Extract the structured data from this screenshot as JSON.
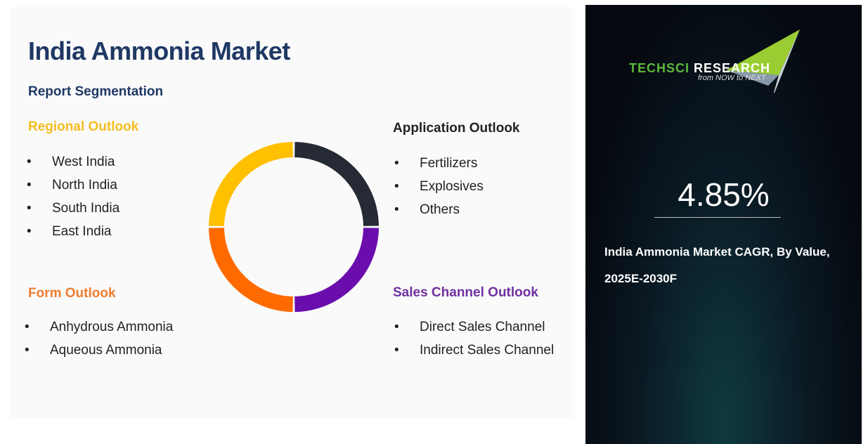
{
  "title": "India Ammonia Market",
  "subtitle": "Report Segmentation",
  "sections": {
    "regional": {
      "label": "Regional Outlook",
      "color": "#f5bd1f",
      "items": [
        "West India",
        "North India",
        "South India",
        "East India"
      ]
    },
    "application": {
      "label": "Application Outlook",
      "color": "#222222",
      "items": [
        "Fertilizers",
        "Explosives",
        "Others"
      ]
    },
    "form": {
      "label": "Form Outlook",
      "color": "#ed7d31",
      "items": [
        "Anhydrous Ammonia",
        "Aqueous Ammonia"
      ]
    },
    "sales": {
      "label": "Sales Channel Outlook",
      "color": "#7030a0",
      "items": [
        "Direct Sales Channel",
        "Indirect Sales Channel"
      ]
    }
  },
  "donut_colors": [
    "#252a35",
    "#6a0dad",
    "#ff6a00",
    "#ffc000"
  ],
  "sidebar": {
    "logo_text_1": "TECHSCI",
    "logo_text_2": "RESEARCH",
    "tagline": "from NOW to NEXT",
    "cagr": "4.85%",
    "description": "India Ammonia Market CAGR, By Value, 2025E-2030F"
  }
}
